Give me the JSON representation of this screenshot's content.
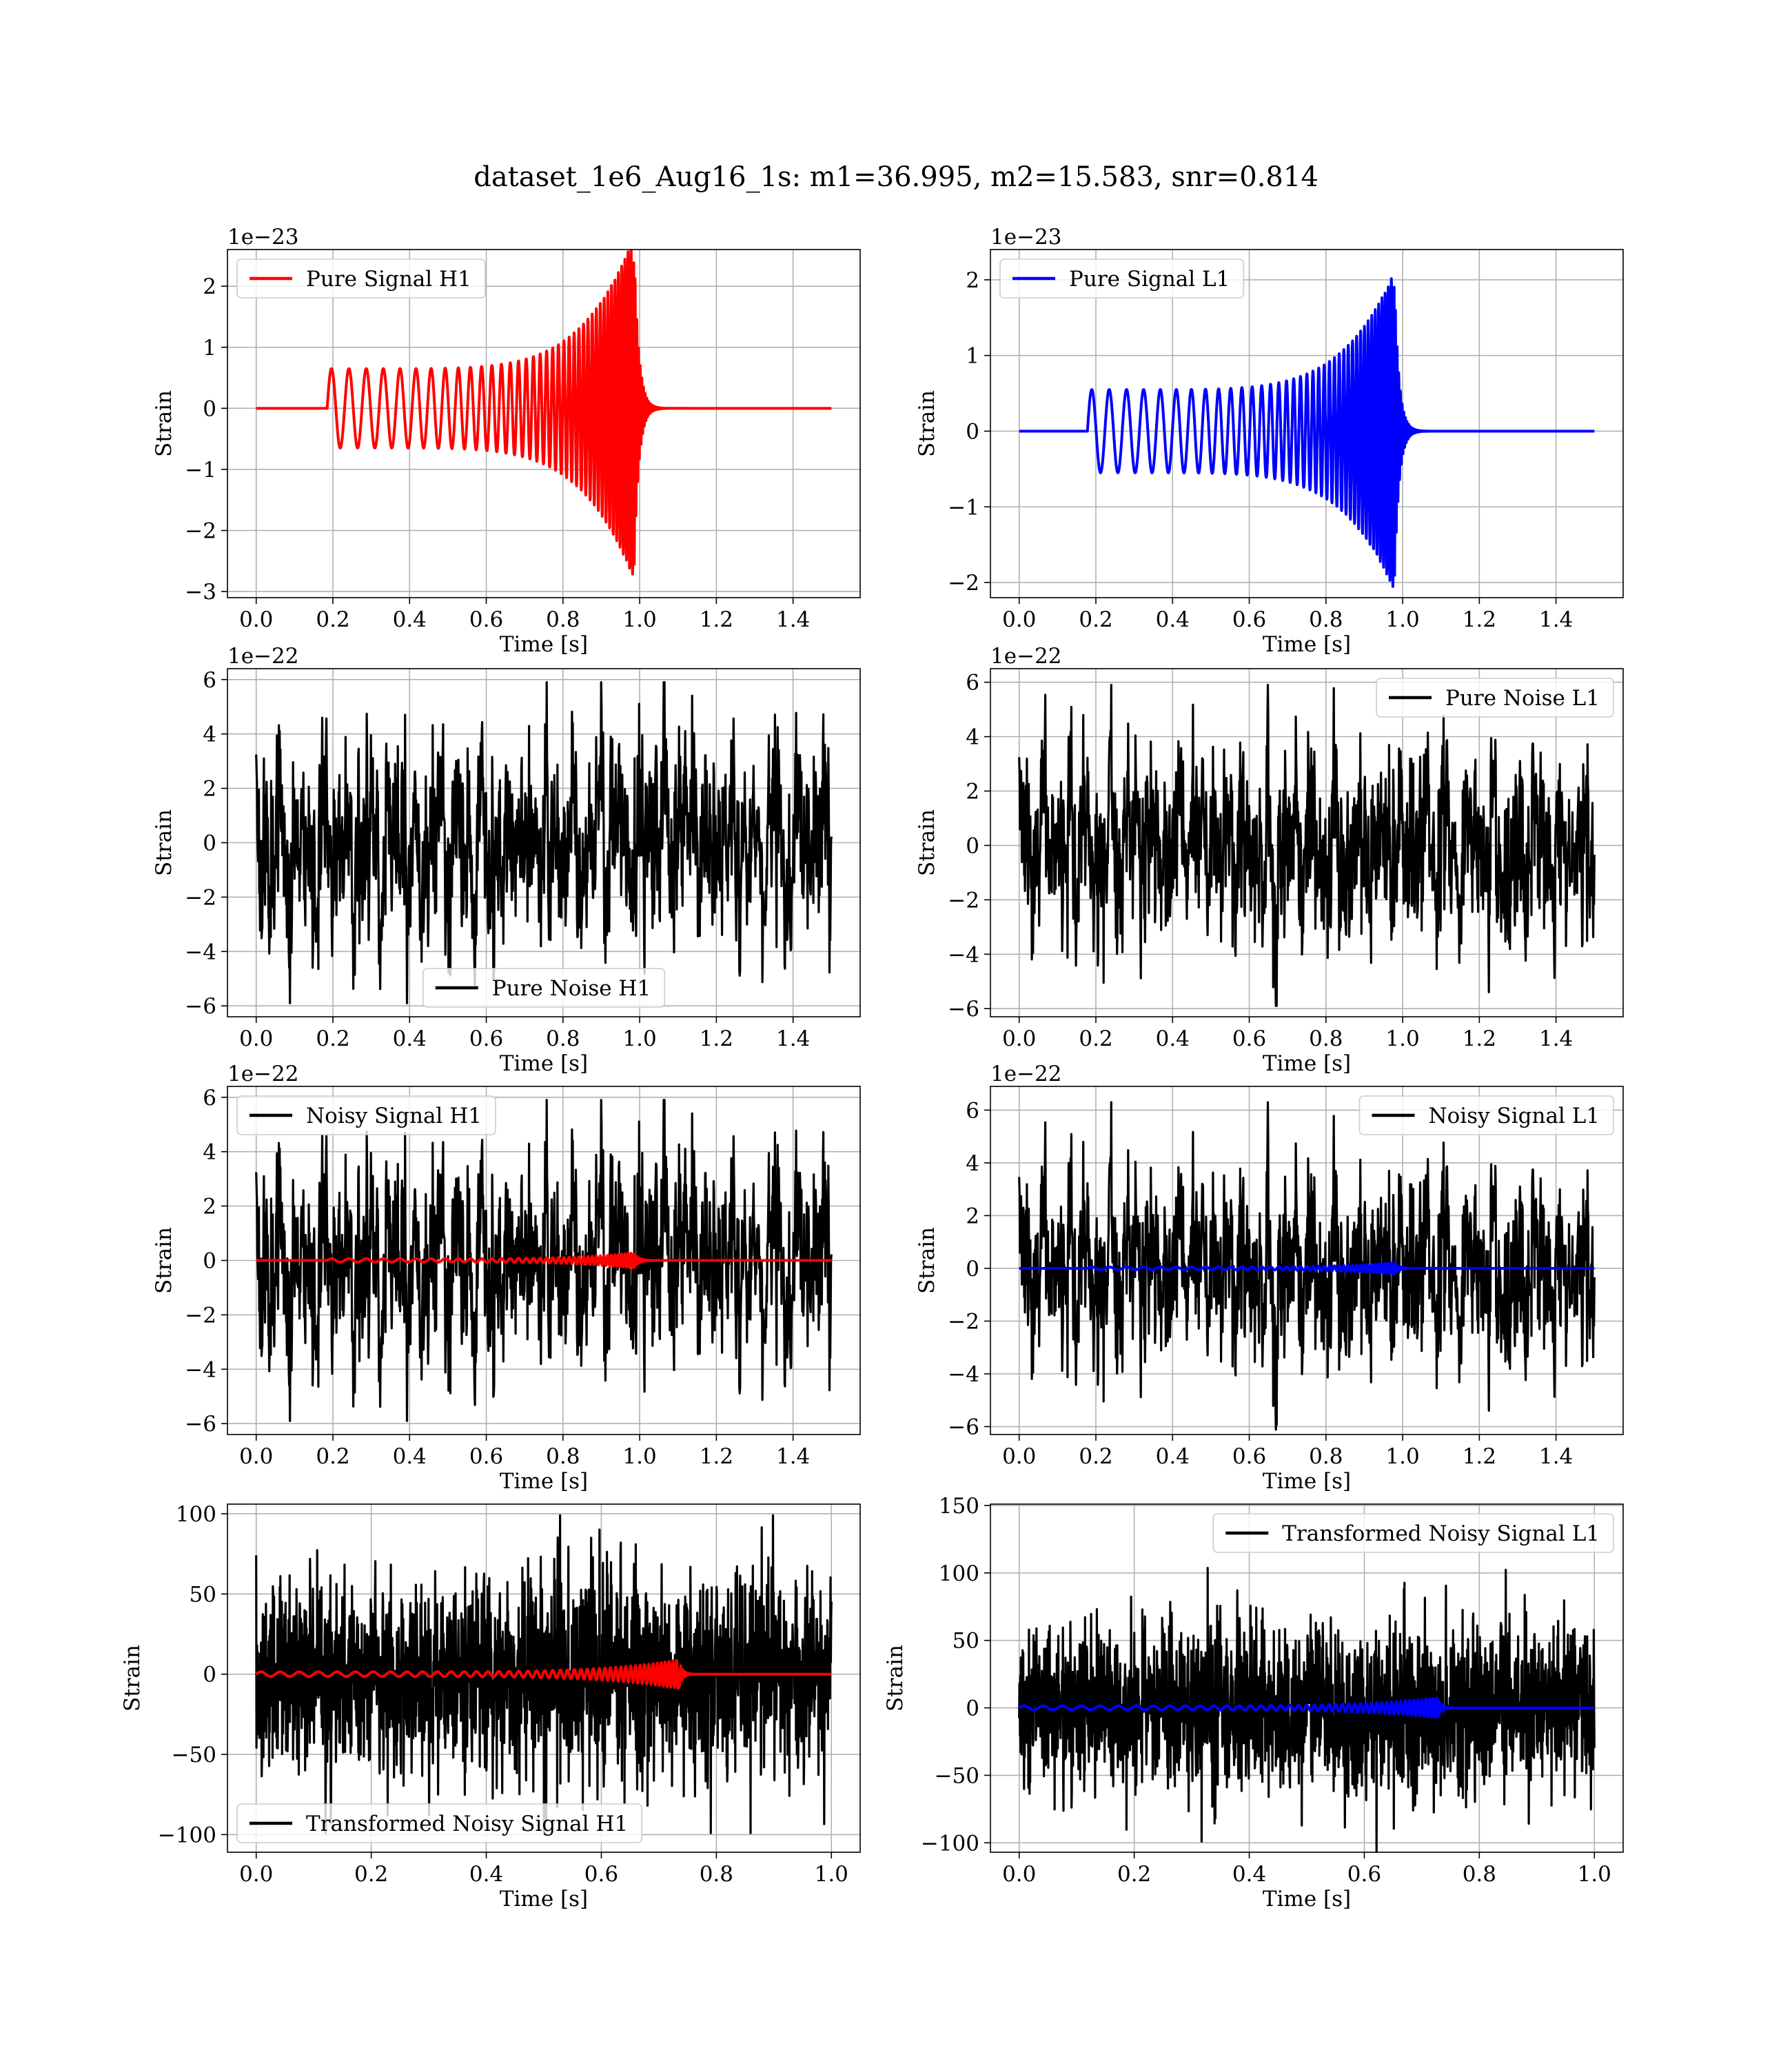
{
  "figure": {
    "title": "dataset_1e6_Aug16_1s: m1=36.995, m2=15.583, snr=0.814"
  },
  "colors": {
    "h1": "#ff0000",
    "l1": "#0000ff",
    "noise": "#000000",
    "grid": "#b0b0b0"
  },
  "chart_data": [
    {
      "type": "line",
      "id": "pure-signal-h1",
      "xlabel": "Time [s]",
      "ylabel": "Strain",
      "offset_text": "1e−23",
      "xlim": [
        -0.075,
        1.575
      ],
      "ylim": [
        -3.1,
        2.6
      ],
      "xticks": [
        0.0,
        0.2,
        0.4,
        0.6,
        0.8,
        1.0,
        1.2,
        1.4
      ],
      "xtick_labels": [
        "0.0",
        "0.2",
        "0.4",
        "0.6",
        "0.8",
        "1.0",
        "1.2",
        "1.4"
      ],
      "yticks": [
        -3,
        -2,
        -1,
        0,
        1,
        2
      ],
      "ytick_labels": [
        "−3",
        "−2",
        "−1",
        "0",
        "1",
        "2"
      ],
      "legend": "upper-left",
      "series": [
        {
          "name": "Pure Signal H1",
          "color": "#ff0000",
          "kind": "chirp",
          "x_range": [
            0,
            1.5
          ],
          "t_start": 0.185,
          "t_merge": 0.985,
          "f0": 22,
          "f1": 130,
          "amp0": 0.65,
          "amp_peak": 2.8,
          "ring": 0.012,
          "legend": true
        }
      ]
    },
    {
      "type": "line",
      "id": "pure-signal-l1",
      "xlabel": "Time [s]",
      "ylabel": "Strain",
      "offset_text": "1e−23",
      "xlim": [
        -0.075,
        1.575
      ],
      "ylim": [
        -2.2,
        2.4
      ],
      "xticks": [
        0.0,
        0.2,
        0.4,
        0.6,
        0.8,
        1.0,
        1.2,
        1.4
      ],
      "xtick_labels": [
        "0.0",
        "0.2",
        "0.4",
        "0.6",
        "0.8",
        "1.0",
        "1.2",
        "1.4"
      ],
      "yticks": [
        -2,
        -1,
        0,
        1,
        2
      ],
      "ytick_labels": [
        "−2",
        "−1",
        "0",
        "1",
        "2"
      ],
      "legend": "upper-left",
      "series": [
        {
          "name": "Pure Signal L1",
          "color": "#0000ff",
          "kind": "chirp",
          "x_range": [
            0,
            1.5
          ],
          "t_start": 0.178,
          "t_merge": 0.978,
          "f0": 22,
          "f1": 130,
          "amp0": 0.55,
          "amp_peak": 2.1,
          "ring": 0.012,
          "legend": true
        }
      ]
    },
    {
      "type": "line",
      "id": "pure-noise-h1",
      "xlabel": "Time [s]",
      "ylabel": "Strain",
      "offset_text": "1e−22",
      "xlim": [
        -0.075,
        1.575
      ],
      "ylim": [
        -6.4,
        6.4
      ],
      "xticks": [
        0.0,
        0.2,
        0.4,
        0.6,
        0.8,
        1.0,
        1.2,
        1.4
      ],
      "xtick_labels": [
        "0.0",
        "0.2",
        "0.4",
        "0.6",
        "0.8",
        "1.0",
        "1.2",
        "1.4"
      ],
      "yticks": [
        -6,
        -4,
        -2,
        0,
        2,
        4,
        6
      ],
      "ytick_labels": [
        "−6",
        "−4",
        "−2",
        "0",
        "2",
        "4",
        "6"
      ],
      "legend": "lower-center",
      "series": [
        {
          "name": "Pure Noise H1",
          "color": "#000000",
          "kind": "noise",
          "x_range": [
            0,
            1.5
          ],
          "n": 1500,
          "seed": 11,
          "scale": 1.75,
          "max_abs": 5.9,
          "legend": true
        }
      ]
    },
    {
      "type": "line",
      "id": "pure-noise-l1",
      "xlabel": "Time [s]",
      "ylabel": "Strain",
      "offset_text": "1e−22",
      "xlim": [
        -0.075,
        1.575
      ],
      "ylim": [
        -6.3,
        6.5
      ],
      "xticks": [
        0.0,
        0.2,
        0.4,
        0.6,
        0.8,
        1.0,
        1.2,
        1.4
      ],
      "xtick_labels": [
        "0.0",
        "0.2",
        "0.4",
        "0.6",
        "0.8",
        "1.0",
        "1.2",
        "1.4"
      ],
      "yticks": [
        -6,
        -4,
        -2,
        0,
        2,
        4,
        6
      ],
      "ytick_labels": [
        "−6",
        "−4",
        "−2",
        "0",
        "2",
        "4",
        "6"
      ],
      "legend": "upper-right",
      "series": [
        {
          "name": "Pure Noise L1",
          "color": "#000000",
          "kind": "noise",
          "x_range": [
            0,
            1.5
          ],
          "n": 1500,
          "seed": 23,
          "scale": 1.65,
          "max_abs": 5.9,
          "legend": true
        }
      ]
    },
    {
      "type": "line",
      "id": "noisy-signal-h1",
      "xlabel": "Time [s]",
      "ylabel": "Strain",
      "offset_text": "1e−22",
      "xlim": [
        -0.075,
        1.575
      ],
      "ylim": [
        -6.4,
        6.4
      ],
      "xticks": [
        0.0,
        0.2,
        0.4,
        0.6,
        0.8,
        1.0,
        1.2,
        1.4
      ],
      "xtick_labels": [
        "0.0",
        "0.2",
        "0.4",
        "0.6",
        "0.8",
        "1.0",
        "1.2",
        "1.4"
      ],
      "yticks": [
        -6,
        -4,
        -2,
        0,
        2,
        4,
        6
      ],
      "ytick_labels": [
        "−6",
        "−4",
        "−2",
        "0",
        "2",
        "4",
        "6"
      ],
      "legend": "upper-left",
      "series": [
        {
          "name": "Noisy Signal H1",
          "color": "#000000",
          "kind": "noise",
          "x_range": [
            0,
            1.5
          ],
          "n": 1500,
          "seed": 11,
          "scale": 1.75,
          "max_abs": 5.9,
          "legend": true
        },
        {
          "color": "#ff0000",
          "kind": "chirp",
          "x_range": [
            0,
            1.5
          ],
          "t_start": 0.185,
          "t_merge": 0.985,
          "f0": 22,
          "f1": 130,
          "amp0": 0.065,
          "amp_peak": 0.28,
          "ring": 0.012,
          "legend": false
        }
      ]
    },
    {
      "type": "line",
      "id": "noisy-signal-l1",
      "xlabel": "Time [s]",
      "ylabel": "Strain",
      "offset_text": "1e−22",
      "xlim": [
        -0.075,
        1.575
      ],
      "ylim": [
        -6.3,
        6.9
      ],
      "xticks": [
        0.0,
        0.2,
        0.4,
        0.6,
        0.8,
        1.0,
        1.2,
        1.4
      ],
      "xtick_labels": [
        "0.0",
        "0.2",
        "0.4",
        "0.6",
        "0.8",
        "1.0",
        "1.2",
        "1.4"
      ],
      "yticks": [
        -6,
        -4,
        -2,
        0,
        2,
        4,
        6
      ],
      "ytick_labels": [
        "−6",
        "−4",
        "−2",
        "0",
        "2",
        "4",
        "6"
      ],
      "legend": "upper-right",
      "series": [
        {
          "name": "Noisy Signal L1",
          "color": "#000000",
          "kind": "noise",
          "x_range": [
            0,
            1.5
          ],
          "n": 1500,
          "seed": 23,
          "scale": 1.65,
          "max_abs": 6.3,
          "legend": true
        },
        {
          "color": "#0000ff",
          "kind": "chirp",
          "x_range": [
            0,
            1.5
          ],
          "t_start": 0.178,
          "t_merge": 0.978,
          "f0": 22,
          "f1": 130,
          "amp0": 0.055,
          "amp_peak": 0.21,
          "ring": 0.012,
          "legend": false
        }
      ]
    },
    {
      "type": "line",
      "id": "transformed-noisy-signal-h1",
      "xlabel": "Time [s]",
      "ylabel": "Strain",
      "offset_text": "",
      "xlim": [
        -0.05,
        1.05
      ],
      "ylim": [
        -111,
        106
      ],
      "xticks": [
        0.0,
        0.2,
        0.4,
        0.6,
        0.8,
        1.0
      ],
      "xtick_labels": [
        "0.0",
        "0.2",
        "0.4",
        "0.6",
        "0.8",
        "1.0"
      ],
      "yticks": [
        -100,
        -50,
        0,
        50,
        100
      ],
      "ytick_labels": [
        "−100",
        "−50",
        "0",
        "50",
        "100"
      ],
      "legend": "lower-left",
      "series": [
        {
          "name": "Transformed Noisy Signal H1",
          "color": "#000000",
          "kind": "noise",
          "x_range": [
            0,
            1.0
          ],
          "n": 2000,
          "seed": 37,
          "scale": 30,
          "max_abs": 99,
          "white": true,
          "legend": true
        },
        {
          "color": "#ff0000",
          "kind": "chirp",
          "x_range": [
            0,
            1.0
          ],
          "t_start": 0.0,
          "t_merge": 0.735,
          "f0": 30,
          "f1": 160,
          "amp0": 1.5,
          "amp_peak": 9.0,
          "ring": 0.006,
          "legend": false
        }
      ]
    },
    {
      "type": "line",
      "id": "transformed-noisy-signal-l1",
      "xlabel": "Time [s]",
      "ylabel": "Strain",
      "offset_text": "",
      "xlim": [
        -0.05,
        1.05
      ],
      "ylim": [
        -107,
        151
      ],
      "xticks": [
        0.0,
        0.2,
        0.4,
        0.6,
        0.8,
        1.0
      ],
      "xtick_labels": [
        "0.0",
        "0.2",
        "0.4",
        "0.6",
        "0.8",
        "1.0"
      ],
      "yticks": [
        -100,
        -50,
        0,
        50,
        100,
        150
      ],
      "ytick_labels": [
        "−100",
        "−50",
        "0",
        "50",
        "100",
        "150"
      ],
      "legend": "upper-right",
      "series": [
        {
          "name": "Transformed Noisy Signal L1",
          "color": "#000000",
          "kind": "noise",
          "x_range": [
            0,
            1.0
          ],
          "n": 2000,
          "seed": 53,
          "scale": 30,
          "max_abs": 118,
          "white": true,
          "legend": true
        },
        {
          "color": "#0000ff",
          "kind": "chirp",
          "x_range": [
            0,
            1.0
          ],
          "t_start": 0.0,
          "t_merge": 0.728,
          "f0": 30,
          "f1": 160,
          "amp0": 1.5,
          "amp_peak": 7.5,
          "ring": 0.006,
          "legend": false
        }
      ]
    }
  ]
}
